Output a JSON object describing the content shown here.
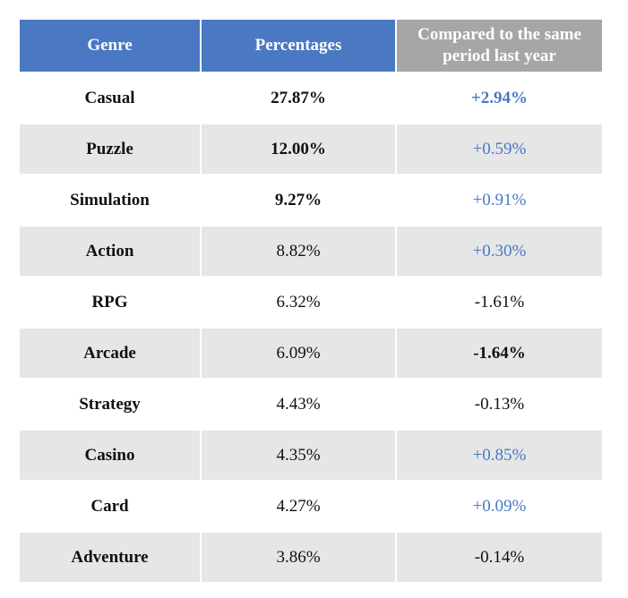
{
  "table": {
    "headers": {
      "genre": "Genre",
      "percentages": "Percentages",
      "compared": "Compared to the same period last year"
    },
    "rows": [
      {
        "genre": "Casual",
        "percentage": "27.87%",
        "change": "+2.94%"
      },
      {
        "genre": "Puzzle",
        "percentage": "12.00%",
        "change": "+0.59%"
      },
      {
        "genre": "Simulation",
        "percentage": "9.27%",
        "change": "+0.91%"
      },
      {
        "genre": "Action",
        "percentage": "8.82%",
        "change": "+0.30%"
      },
      {
        "genre": "RPG",
        "percentage": "6.32%",
        "change": "-1.61%"
      },
      {
        "genre": "Arcade",
        "percentage": "6.09%",
        "change": "-1.64%"
      },
      {
        "genre": "Strategy",
        "percentage": "4.43%",
        "change": "-0.13%"
      },
      {
        "genre": "Casino",
        "percentage": "4.35%",
        "change": "+0.85%"
      },
      {
        "genre": "Card",
        "percentage": "4.27%",
        "change": "+0.09%"
      },
      {
        "genre": "Adventure",
        "percentage": "3.86%",
        "change": "-0.14%"
      }
    ]
  },
  "colors": {
    "header_blue": "#4a78c2",
    "header_gray": "#a6a6a6",
    "row_shade": "#e6e6e6",
    "positive_text": "#4a78c2",
    "negative_text": "#111111"
  }
}
